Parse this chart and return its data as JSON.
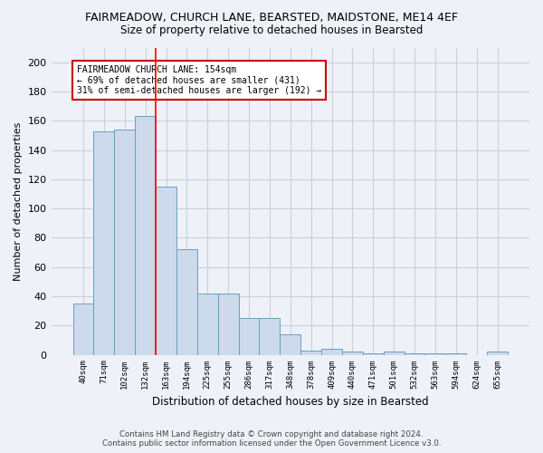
{
  "title": "FAIRMEADOW, CHURCH LANE, BEARSTED, MAIDSTONE, ME14 4EF",
  "subtitle": "Size of property relative to detached houses in Bearsted",
  "xlabel": "Distribution of detached houses by size in Bearsted",
  "ylabel": "Number of detached properties",
  "bar_color": "#ccdaeb",
  "bar_edge_color": "#6a9ec0",
  "categories": [
    "40sqm",
    "71sqm",
    "102sqm",
    "132sqm",
    "163sqm",
    "194sqm",
    "225sqm",
    "255sqm",
    "286sqm",
    "317sqm",
    "348sqm",
    "378sqm",
    "409sqm",
    "440sqm",
    "471sqm",
    "501sqm",
    "532sqm",
    "563sqm",
    "594sqm",
    "624sqm",
    "655sqm"
  ],
  "values": [
    35,
    153,
    154,
    163,
    115,
    72,
    42,
    42,
    25,
    25,
    14,
    3,
    4,
    2,
    1,
    2,
    1,
    1,
    1,
    0,
    2
  ],
  "ylim": [
    0,
    210
  ],
  "yticks": [
    0,
    20,
    40,
    60,
    80,
    100,
    120,
    140,
    160,
    180,
    200
  ],
  "vline_x_index": 3.5,
  "annotation_text": "FAIRMEADOW CHURCH LANE: 154sqm\n← 69% of detached houses are smaller (431)\n31% of semi-detached houses are larger (192) →",
  "annotation_box_color": "#ffffff",
  "annotation_box_edge": "#cc0000",
  "footer_line1": "Contains HM Land Registry data © Crown copyright and database right 2024.",
  "footer_line2": "Contains public sector information licensed under the Open Government Licence v3.0.",
  "bg_color": "#eef2f8",
  "plot_bg_color": "#eef2f8",
  "grid_color": "#c8d0de"
}
